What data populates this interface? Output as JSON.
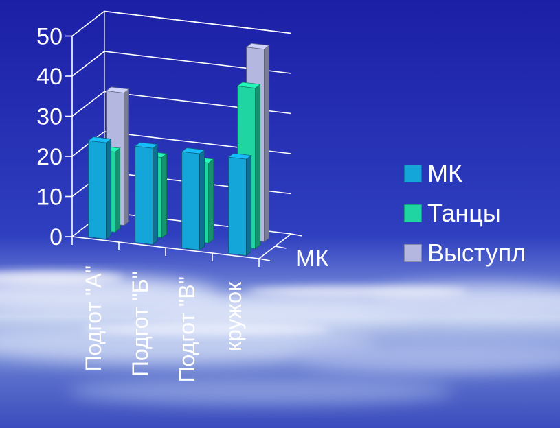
{
  "chart_data": {
    "type": "bar",
    "style": "3d-clustered-column",
    "categories": [
      "Подгот \"А\"",
      "Подгот \"Б\"",
      "Подгот \"В\"",
      "кружок"
    ],
    "series": [
      {
        "name": "МК",
        "values": [
          24,
          24,
          24,
          24
        ],
        "color": "#14a6d9"
      },
      {
        "name": "Танцы",
        "values": [
          20,
          20,
          20,
          40
        ],
        "color": "#1fd6a3"
      },
      {
        "name": "Выступл",
        "values": [
          33,
          0,
          0,
          48
        ],
        "color": "#b4b8e0"
      }
    ],
    "depth_label": "МК",
    "y_ticks": [
      "0",
      "10",
      "20",
      "30",
      "40",
      "50"
    ],
    "ylim": [
      0,
      50
    ],
    "grid": true,
    "legend_position": "right"
  }
}
